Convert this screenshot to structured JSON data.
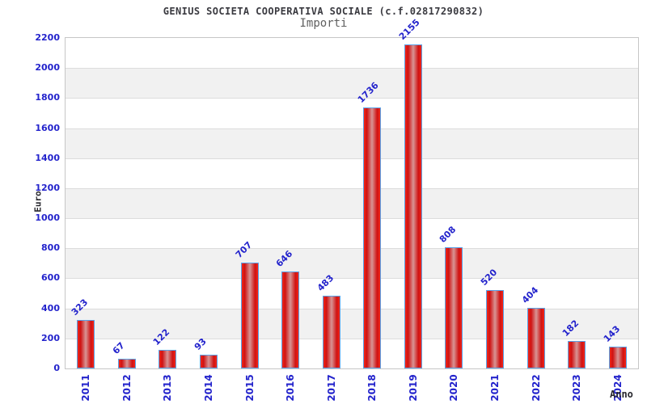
{
  "chart_data": {
    "type": "bar",
    "title": "GENIUS SOCIETA COOPERATIVA SOCIALE (c.f.02817290832)",
    "subtitle": "Importi",
    "xlabel": "Anno",
    "ylabel": "Euro",
    "categories": [
      "2011",
      "2012",
      "2013",
      "2014",
      "2015",
      "2016",
      "2017",
      "2018",
      "2019",
      "2020",
      "2021",
      "2022",
      "2023",
      "2024"
    ],
    "values": [
      323,
      67,
      122,
      93,
      707,
      646,
      483,
      1736,
      2155,
      808,
      520,
      404,
      182,
      143
    ],
    "ylim": [
      0,
      2200
    ],
    "yticks": [
      0,
      200,
      400,
      600,
      800,
      1000,
      1200,
      1400,
      1600,
      1800,
      2000,
      2200
    ],
    "grid": "horizontal alternating white/gray bands every 200, thin gridlines at ticks",
    "legend": "none",
    "bar_value_label_rotation_deg": -45,
    "x_tick_rotation_deg": -90,
    "colors": {
      "label_blue": "#2323cc",
      "bar_edge": "#f22618",
      "bar_dark": "#cf1212",
      "bar_mid": "#d89494",
      "bar_border": "#5aa2e8",
      "band_gray": "#f1f1f1",
      "grid_line": "#dcdcdc",
      "plot_border": "#c6c6c6",
      "title_color": "#3a3a40",
      "subtitle_color": "#606060",
      "axis_label_color": "#26262c"
    }
  }
}
